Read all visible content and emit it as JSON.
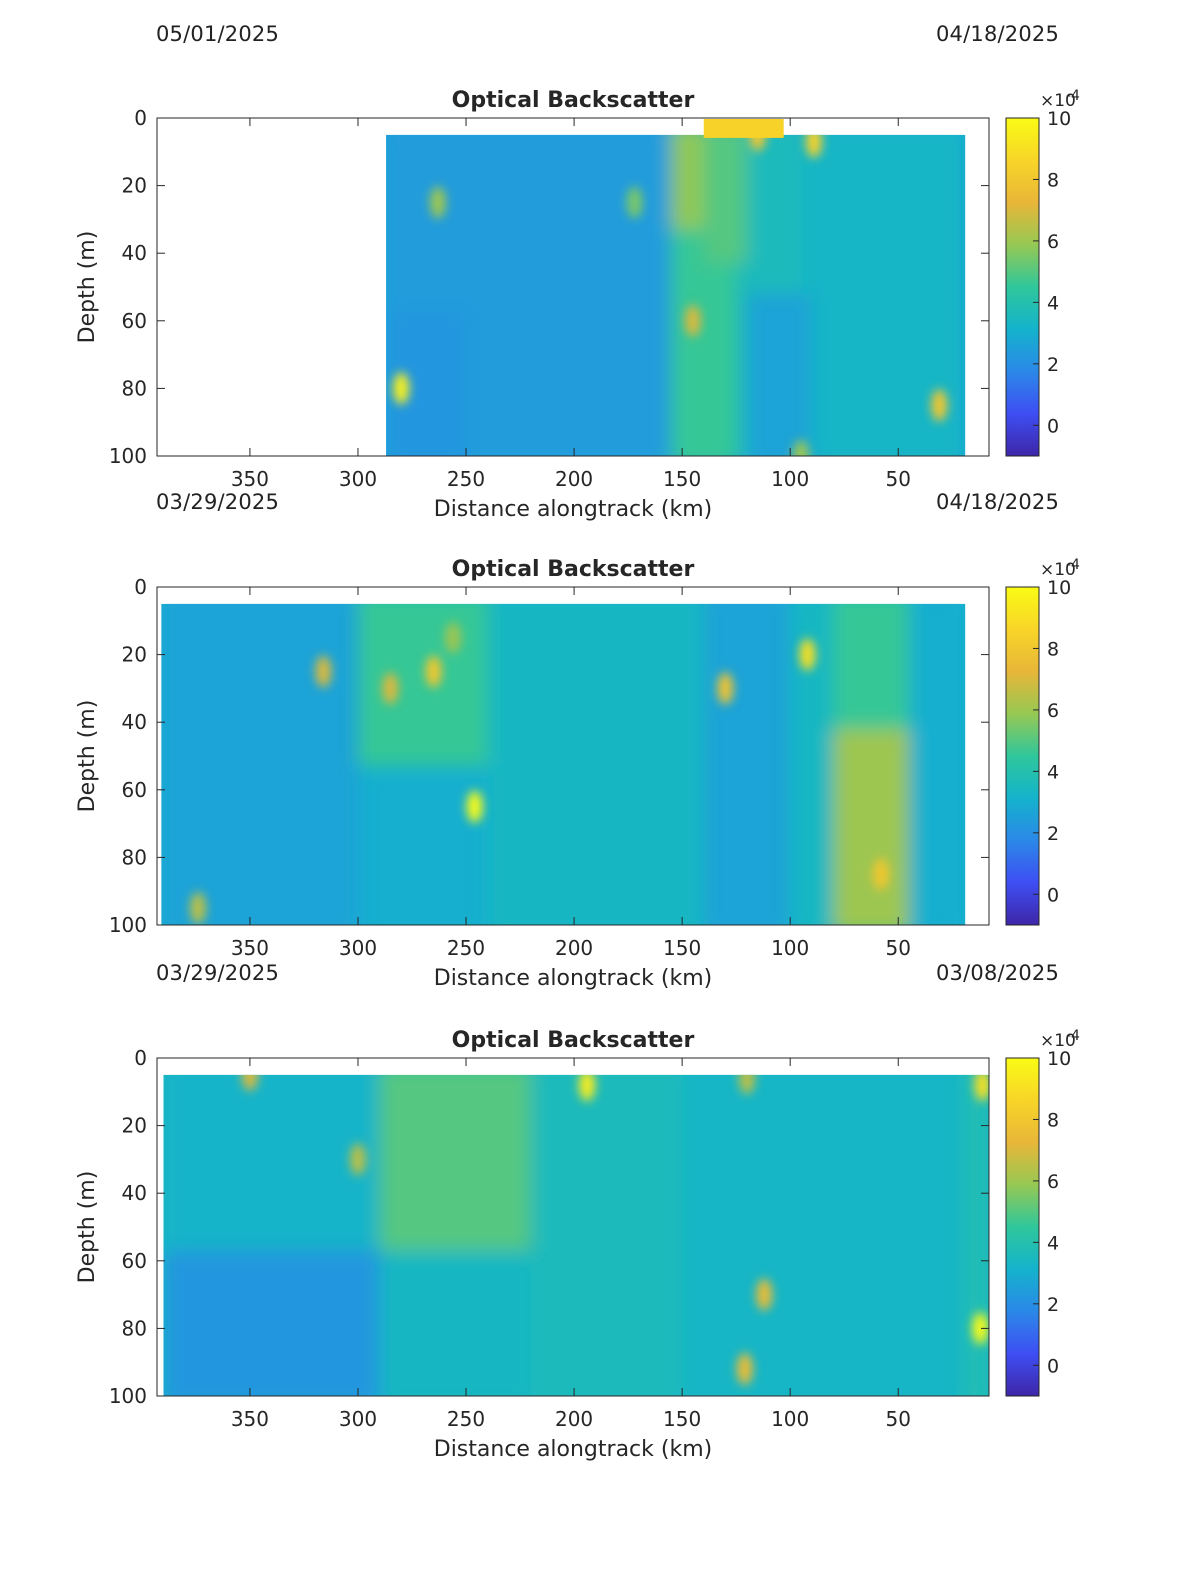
{
  "date_labels": [
    {
      "text": "05/01/2025"
    },
    {
      "text": "04/18/2025"
    },
    {
      "text": "03/29/2025"
    },
    {
      "text": "04/18/2025"
    },
    {
      "text": "03/29/2025"
    },
    {
      "text": "03/08/2025"
    }
  ],
  "colorbar": {
    "ticks": [
      0,
      2,
      4,
      6,
      8,
      10
    ],
    "range": [
      -1,
      10
    ],
    "multiplier": "×10",
    "exponent": "-4",
    "colormap": "parula",
    "colors": [
      "#3e26a8",
      "#3e4ef3",
      "#2b88e8",
      "#14b3cc",
      "#2fc79b",
      "#96c853",
      "#e8b638",
      "#f8d528",
      "#f9fb15"
    ]
  },
  "chart_data": [
    {
      "type": "heatmap",
      "title": "Optical Backscatter",
      "xlabel": "Distance alongtrack (km)",
      "ylabel": "Depth (m)",
      "x_reversed": true,
      "y_reversed": true,
      "xlim": [
        393,
        8
      ],
      "ylim": [
        0,
        100
      ],
      "x_ticks": [
        350,
        300,
        250,
        200,
        150,
        100,
        50
      ],
      "y_ticks": [
        0,
        20,
        40,
        60,
        80,
        100
      ],
      "value_range": [
        -1,
        10
      ],
      "value_units": "×10^-4",
      "data_extent": {
        "x": [
          287,
          19
        ],
        "depth": [
          5,
          100
        ]
      },
      "surface_extension": {
        "x": [
          140,
          103
        ],
        "depth": [
          0,
          5
        ],
        "value": 8.5
      },
      "background_value": 2.6,
      "regions": [
        {
          "x": [
            287,
            152
          ],
          "depth": [
            5,
            100
          ],
          "value": 2.4
        },
        {
          "x": [
            155,
            125
          ],
          "depth": [
            5,
            100
          ],
          "value": 4.6
        },
        {
          "x": [
            125,
            95
          ],
          "depth": [
            5,
            100
          ],
          "value": 3.6
        },
        {
          "x": [
            95,
            19
          ],
          "depth": [
            5,
            100
          ],
          "value": 3.3
        },
        {
          "x": [
            155,
            140
          ],
          "depth": [
            5,
            30
          ],
          "value": 5.8
        },
        {
          "x": [
            140,
            120
          ],
          "depth": [
            5,
            40
          ],
          "value": 5.0
        },
        {
          "x": [
            120,
            90
          ],
          "depth": [
            55,
            100
          ],
          "value": 2.6
        },
        {
          "x": [
            287,
            250
          ],
          "depth": [
            60,
            100
          ],
          "value": 2.2
        }
      ],
      "hotspots": [
        {
          "x": 280,
          "depth": 80,
          "value": 9.6
        },
        {
          "x": 31,
          "depth": 85,
          "value": 8.0
        },
        {
          "x": 145,
          "depth": 60,
          "value": 7.0
        },
        {
          "x": 263,
          "depth": 25,
          "value": 6.0
        },
        {
          "x": 89,
          "depth": 7,
          "value": 8.5
        },
        {
          "x": 115,
          "depth": 5,
          "value": 8.0
        },
        {
          "x": 172,
          "depth": 25,
          "value": 5.5
        },
        {
          "x": 95,
          "depth": 100,
          "value": 6.0
        }
      ]
    },
    {
      "type": "heatmap",
      "title": "Optical Backscatter",
      "xlabel": "Distance alongtrack (km)",
      "ylabel": "Depth (m)",
      "x_reversed": true,
      "y_reversed": true,
      "xlim": [
        393,
        8
      ],
      "ylim": [
        0,
        100
      ],
      "x_ticks": [
        350,
        300,
        250,
        200,
        150,
        100,
        50
      ],
      "y_ticks": [
        0,
        20,
        40,
        60,
        80,
        100
      ],
      "value_range": [
        -1,
        10
      ],
      "value_units": "×10^-4",
      "data_extent": {
        "x": [
          391,
          19
        ],
        "depth": [
          5,
          100
        ]
      },
      "background_value": 3.0,
      "regions": [
        {
          "x": [
            391,
            300
          ],
          "depth": [
            5,
            100
          ],
          "value": 2.6
        },
        {
          "x": [
            300,
            240
          ],
          "depth": [
            5,
            50
          ],
          "value": 4.6
        },
        {
          "x": [
            240,
            140
          ],
          "depth": [
            5,
            100
          ],
          "value": 3.4
        },
        {
          "x": [
            140,
            100
          ],
          "depth": [
            5,
            100
          ],
          "value": 2.6
        },
        {
          "x": [
            100,
            80
          ],
          "depth": [
            5,
            100
          ],
          "value": 3.4
        },
        {
          "x": [
            80,
            45
          ],
          "depth": [
            5,
            45
          ],
          "value": 4.6
        },
        {
          "x": [
            80,
            45
          ],
          "depth": [
            45,
            100
          ],
          "value": 6.0
        },
        {
          "x": [
            45,
            19
          ],
          "depth": [
            5,
            100
          ],
          "value": 3.0
        }
      ],
      "hotspots": [
        {
          "x": 246,
          "depth": 65,
          "value": 10.0
        },
        {
          "x": 92,
          "depth": 20,
          "value": 9.0
        },
        {
          "x": 130,
          "depth": 30,
          "value": 7.8
        },
        {
          "x": 265,
          "depth": 25,
          "value": 8.0
        },
        {
          "x": 285,
          "depth": 30,
          "value": 7.0
        },
        {
          "x": 58,
          "depth": 85,
          "value": 8.0
        },
        {
          "x": 316,
          "depth": 25,
          "value": 7.0
        },
        {
          "x": 374,
          "depth": 95,
          "value": 6.5
        },
        {
          "x": 256,
          "depth": 15,
          "value": 6.0
        }
      ]
    },
    {
      "type": "heatmap",
      "title": "Optical Backscatter",
      "xlabel": "Distance alongtrack (km)",
      "ylabel": "Depth (m)",
      "x_reversed": true,
      "y_reversed": true,
      "xlim": [
        393,
        8
      ],
      "ylim": [
        0,
        100
      ],
      "x_ticks": [
        350,
        300,
        250,
        200,
        150,
        100,
        50
      ],
      "y_ticks": [
        0,
        20,
        40,
        60,
        80,
        100
      ],
      "value_range": [
        -1,
        10
      ],
      "value_units": "×10^-4",
      "data_extent": {
        "x": [
          390,
          8
        ],
        "depth": [
          5,
          100
        ]
      },
      "background_value": 3.4,
      "regions": [
        {
          "x": [
            390,
            290
          ],
          "depth": [
            5,
            60
          ],
          "value": 3.2
        },
        {
          "x": [
            390,
            290
          ],
          "depth": [
            60,
            100
          ],
          "value": 2.2
        },
        {
          "x": [
            290,
            220
          ],
          "depth": [
            5,
            60
          ],
          "value": 5.0
        },
        {
          "x": [
            290,
            220
          ],
          "depth": [
            60,
            100
          ],
          "value": 3.4
        },
        {
          "x": [
            220,
            150
          ],
          "depth": [
            5,
            100
          ],
          "value": 3.6
        },
        {
          "x": [
            150,
            20
          ],
          "depth": [
            5,
            100
          ],
          "value": 3.3
        },
        {
          "x": [
            20,
            8
          ],
          "depth": [
            5,
            100
          ],
          "value": 3.8
        }
      ],
      "hotspots": [
        {
          "x": 194,
          "depth": 8,
          "value": 9.5
        },
        {
          "x": 12,
          "depth": 80,
          "value": 10.0
        },
        {
          "x": 11,
          "depth": 8,
          "value": 9.0
        },
        {
          "x": 112,
          "depth": 70,
          "value": 7.5
        },
        {
          "x": 121,
          "depth": 92,
          "value": 7.5
        },
        {
          "x": 300,
          "depth": 30,
          "value": 6.5
        },
        {
          "x": 350,
          "depth": 5,
          "value": 7.0
        },
        {
          "x": 120,
          "depth": 6,
          "value": 6.5
        }
      ]
    }
  ]
}
